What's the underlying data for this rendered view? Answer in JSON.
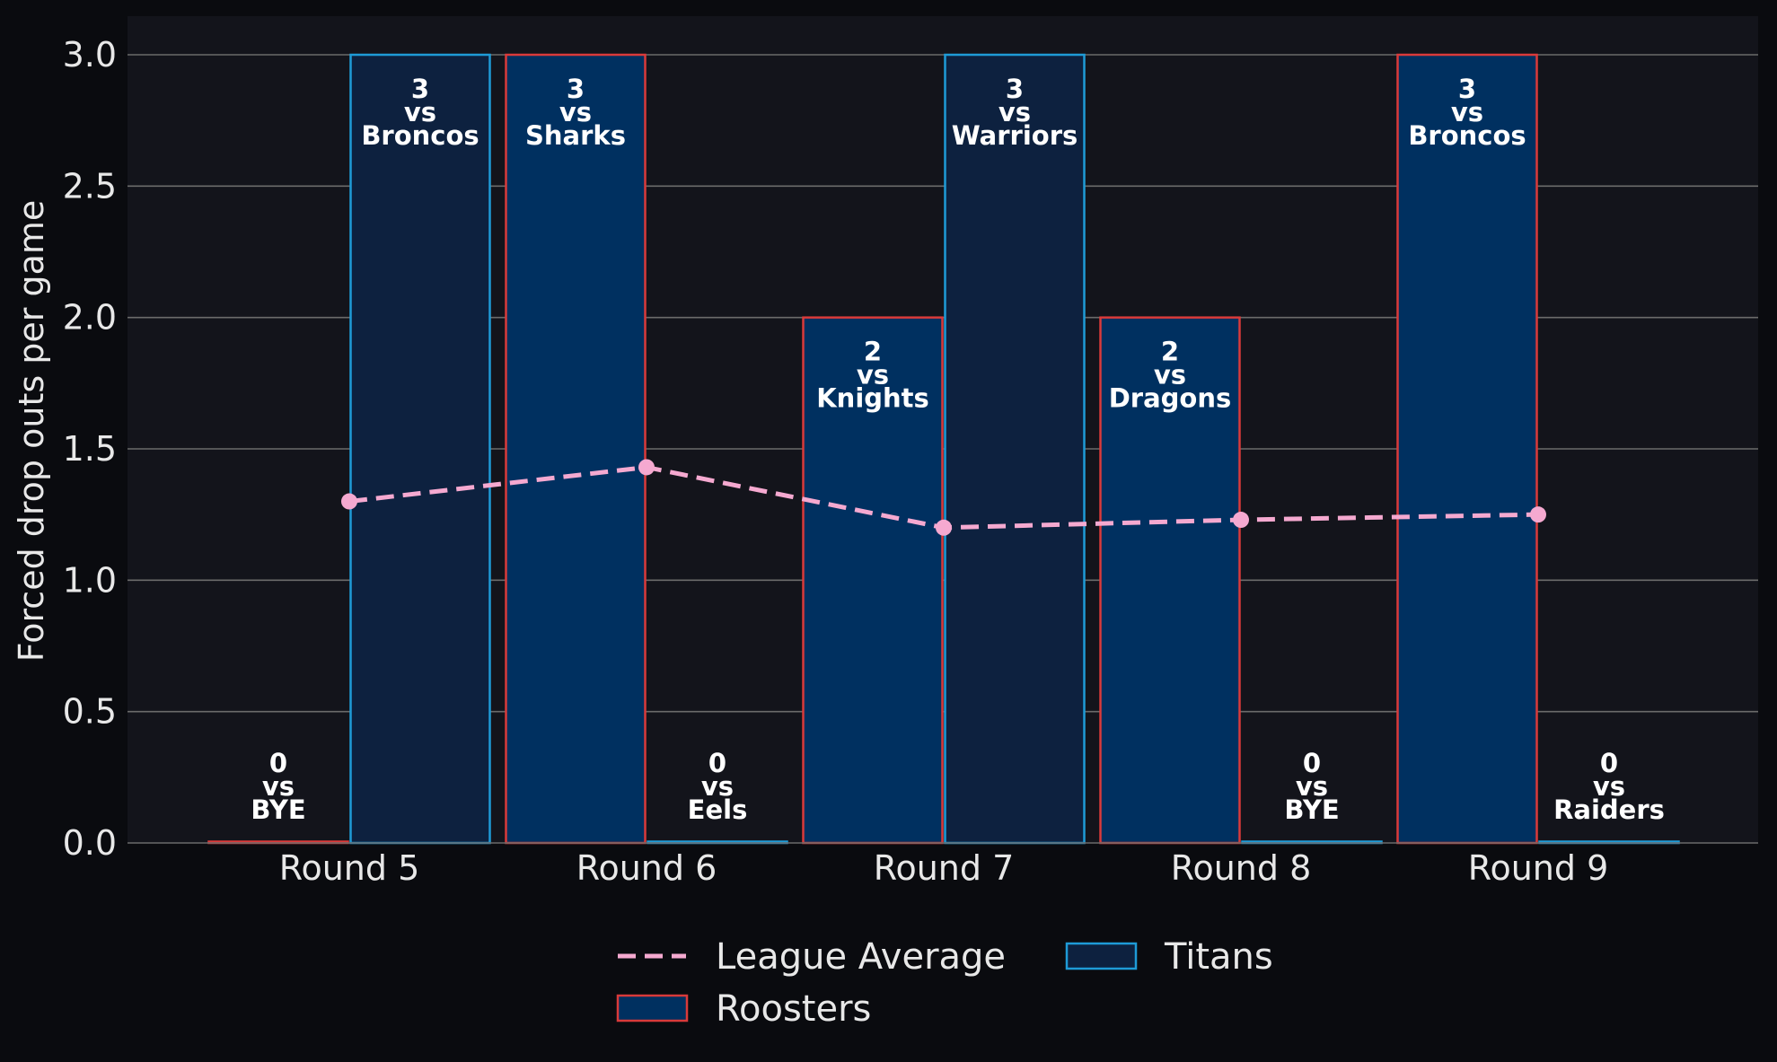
{
  "chart_data": {
    "type": "bar",
    "ylabel": "Forced drop outs per game",
    "ylim": [
      0,
      3.15
    ],
    "yticks": [
      "0.0",
      "0.5",
      "1.0",
      "1.5",
      "2.0",
      "2.5",
      "3.0"
    ],
    "categories": [
      "Round 5",
      "Round 6",
      "Round 7",
      "Round 8",
      "Round 9"
    ],
    "grid": true,
    "legend_position": "bottom",
    "series": [
      {
        "name": "Roosters",
        "kind": "bar",
        "fill": "#003060",
        "edge": "#d93a3a",
        "values": [
          0,
          3,
          2,
          2,
          3
        ],
        "labels": [
          [
            "0",
            "vs",
            "BYE"
          ],
          [
            "3",
            "vs",
            "Sharks"
          ],
          [
            "2",
            "vs",
            "Knights"
          ],
          [
            "2",
            "vs",
            "Dragons"
          ],
          [
            "3",
            "vs",
            "Broncos"
          ]
        ]
      },
      {
        "name": "Titans",
        "kind": "bar",
        "fill": "#0d213f",
        "edge": "#1e9bd7",
        "values": [
          3,
          0,
          3,
          0,
          0
        ],
        "labels": [
          [
            "3",
            "vs",
            "Broncos"
          ],
          [
            "0",
            "vs",
            "Eels"
          ],
          [
            "3",
            "vs",
            "Warriors"
          ],
          [
            "0",
            "vs",
            "BYE"
          ],
          [
            "0",
            "vs",
            "Raiders"
          ]
        ]
      },
      {
        "name": "League Average",
        "kind": "line",
        "color": "#f5a9d0",
        "style": "dashed",
        "values": [
          1.3,
          1.43,
          1.2,
          1.23,
          1.25
        ]
      }
    ],
    "legend_order": [
      "League Average",
      "Titans",
      "Roosters"
    ],
    "colors": {
      "page_bg": "#0a0b0f",
      "plot_bg": "#13141b",
      "grid": "#6b6b6b",
      "text": "#e8e8e8"
    }
  }
}
